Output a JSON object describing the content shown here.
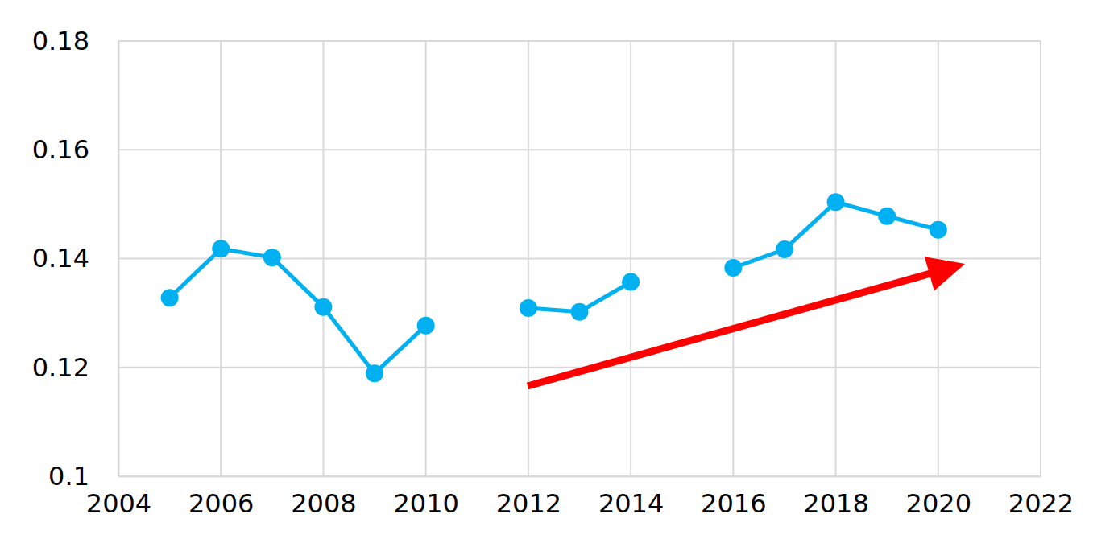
{
  "chart_data": {
    "type": "line",
    "x": [
      2005,
      2006,
      2007,
      2008,
      2009,
      2010,
      2011,
      2012,
      2013,
      2014,
      2015,
      2016,
      2017,
      2018,
      2019,
      2020
    ],
    "values": [
      0.1328,
      0.1418,
      0.1402,
      0.1311,
      0.1189,
      0.1277,
      null,
      0.1309,
      0.1302,
      0.1357,
      null,
      0.1383,
      0.1417,
      0.1504,
      0.1478,
      0.1453
    ],
    "color": "#00b0f0",
    "marker": "circle",
    "xlim": [
      2004,
      2022
    ],
    "xticks": [
      2004,
      2006,
      2008,
      2010,
      2012,
      2014,
      2016,
      2018,
      2020,
      2022
    ],
    "ylim": [
      0.1,
      0.18
    ],
    "yticks": [
      0.1,
      0.12,
      0.14,
      0.16,
      0.18
    ],
    "grid": true
  }
}
